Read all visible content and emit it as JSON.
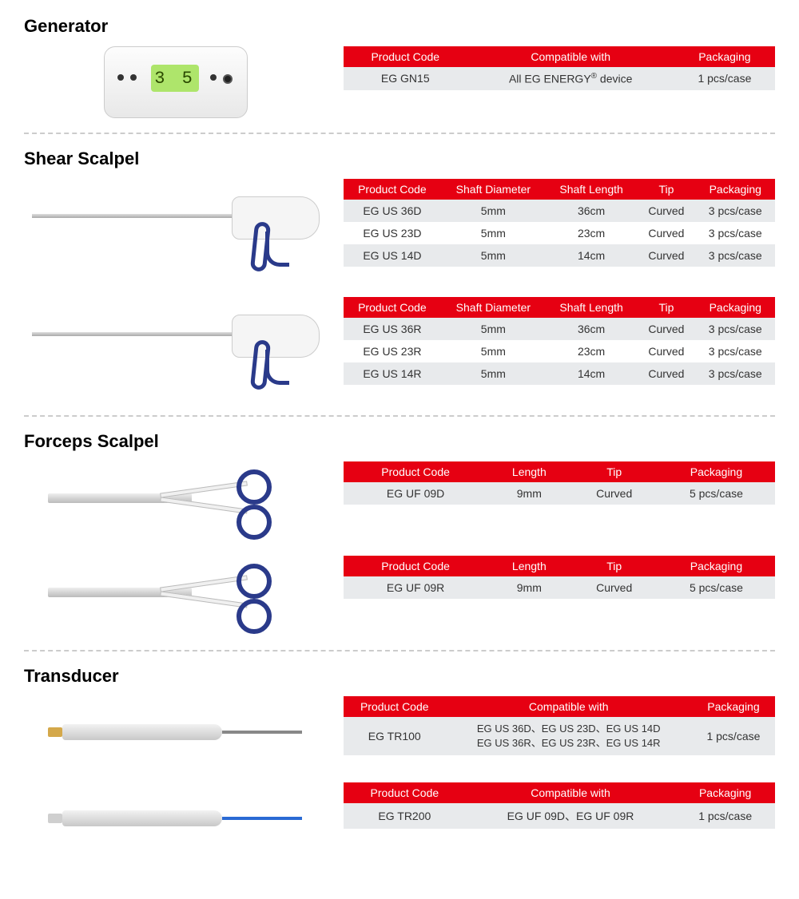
{
  "colors": {
    "header_bg": "#e60012",
    "header_text": "#ffffff",
    "row_odd": "#e8eaec",
    "row_even": "#ffffff",
    "accent": "#2a3a8a"
  },
  "sections": [
    {
      "title": "Generator",
      "blocks": [
        {
          "image": "generator",
          "headers": [
            "Product Code",
            "Compatible with",
            "Packaging"
          ],
          "rows": [
            [
              "EG  GN15",
              "All EG ENERGY® device",
              "1 pcs/case"
            ]
          ]
        }
      ]
    },
    {
      "title": "Shear Scalpel",
      "blocks": [
        {
          "image": "shear-d",
          "headers": [
            "Product Code",
            "Shaft Diameter",
            "Shaft Length",
            "Tip",
            "Packaging"
          ],
          "rows": [
            [
              "EG US 36D",
              "5mm",
              "36cm",
              "Curved",
              "3 pcs/case"
            ],
            [
              "EG US 23D",
              "5mm",
              "23cm",
              "Curved",
              "3 pcs/case"
            ],
            [
              "EG US 14D",
              "5mm",
              "14cm",
              "Curved",
              "3 pcs/case"
            ]
          ]
        },
        {
          "image": "shear-r",
          "headers": [
            "Product Code",
            "Shaft Diameter",
            "Shaft Length",
            "Tip",
            "Packaging"
          ],
          "rows": [
            [
              "EG US 36R",
              "5mm",
              "36cm",
              "Curved",
              "3 pcs/case"
            ],
            [
              "EG US 23R",
              "5mm",
              "23cm",
              "Curved",
              "3 pcs/case"
            ],
            [
              "EG US 14R",
              "5mm",
              "14cm",
              "Curved",
              "3 pcs/case"
            ]
          ]
        }
      ]
    },
    {
      "title": "Forceps Scalpel",
      "blocks": [
        {
          "image": "forceps-d",
          "headers": [
            "Product Code",
            "Length",
            "Tip",
            "Packaging"
          ],
          "rows": [
            [
              "EG UF 09D",
              "9mm",
              "Curved",
              "5 pcs/case"
            ]
          ]
        },
        {
          "image": "forceps-r",
          "headers": [
            "Product Code",
            "Length",
            "Tip",
            "Packaging"
          ],
          "rows": [
            [
              "EG UF 09R",
              "9mm",
              "Curved",
              "5 pcs/case"
            ]
          ]
        }
      ]
    },
    {
      "title": "Transducer",
      "blocks": [
        {
          "image": "transducer-1",
          "headers": [
            "Product Code",
            "Compatible with",
            "Packaging"
          ],
          "rows": [
            [
              "EG  TR100",
              "EG US 36D、EG US 23D、EG US 14D\nEG US 36R、EG US 23R、EG US 14R",
              "1 pcs/case"
            ]
          ]
        },
        {
          "image": "transducer-2",
          "headers": [
            "Product Code",
            "Compatible with",
            "Packaging"
          ],
          "rows": [
            [
              "EG  TR200",
              "EG UF 09D、EG UF 09R",
              "1 pcs/case"
            ]
          ]
        }
      ]
    }
  ]
}
